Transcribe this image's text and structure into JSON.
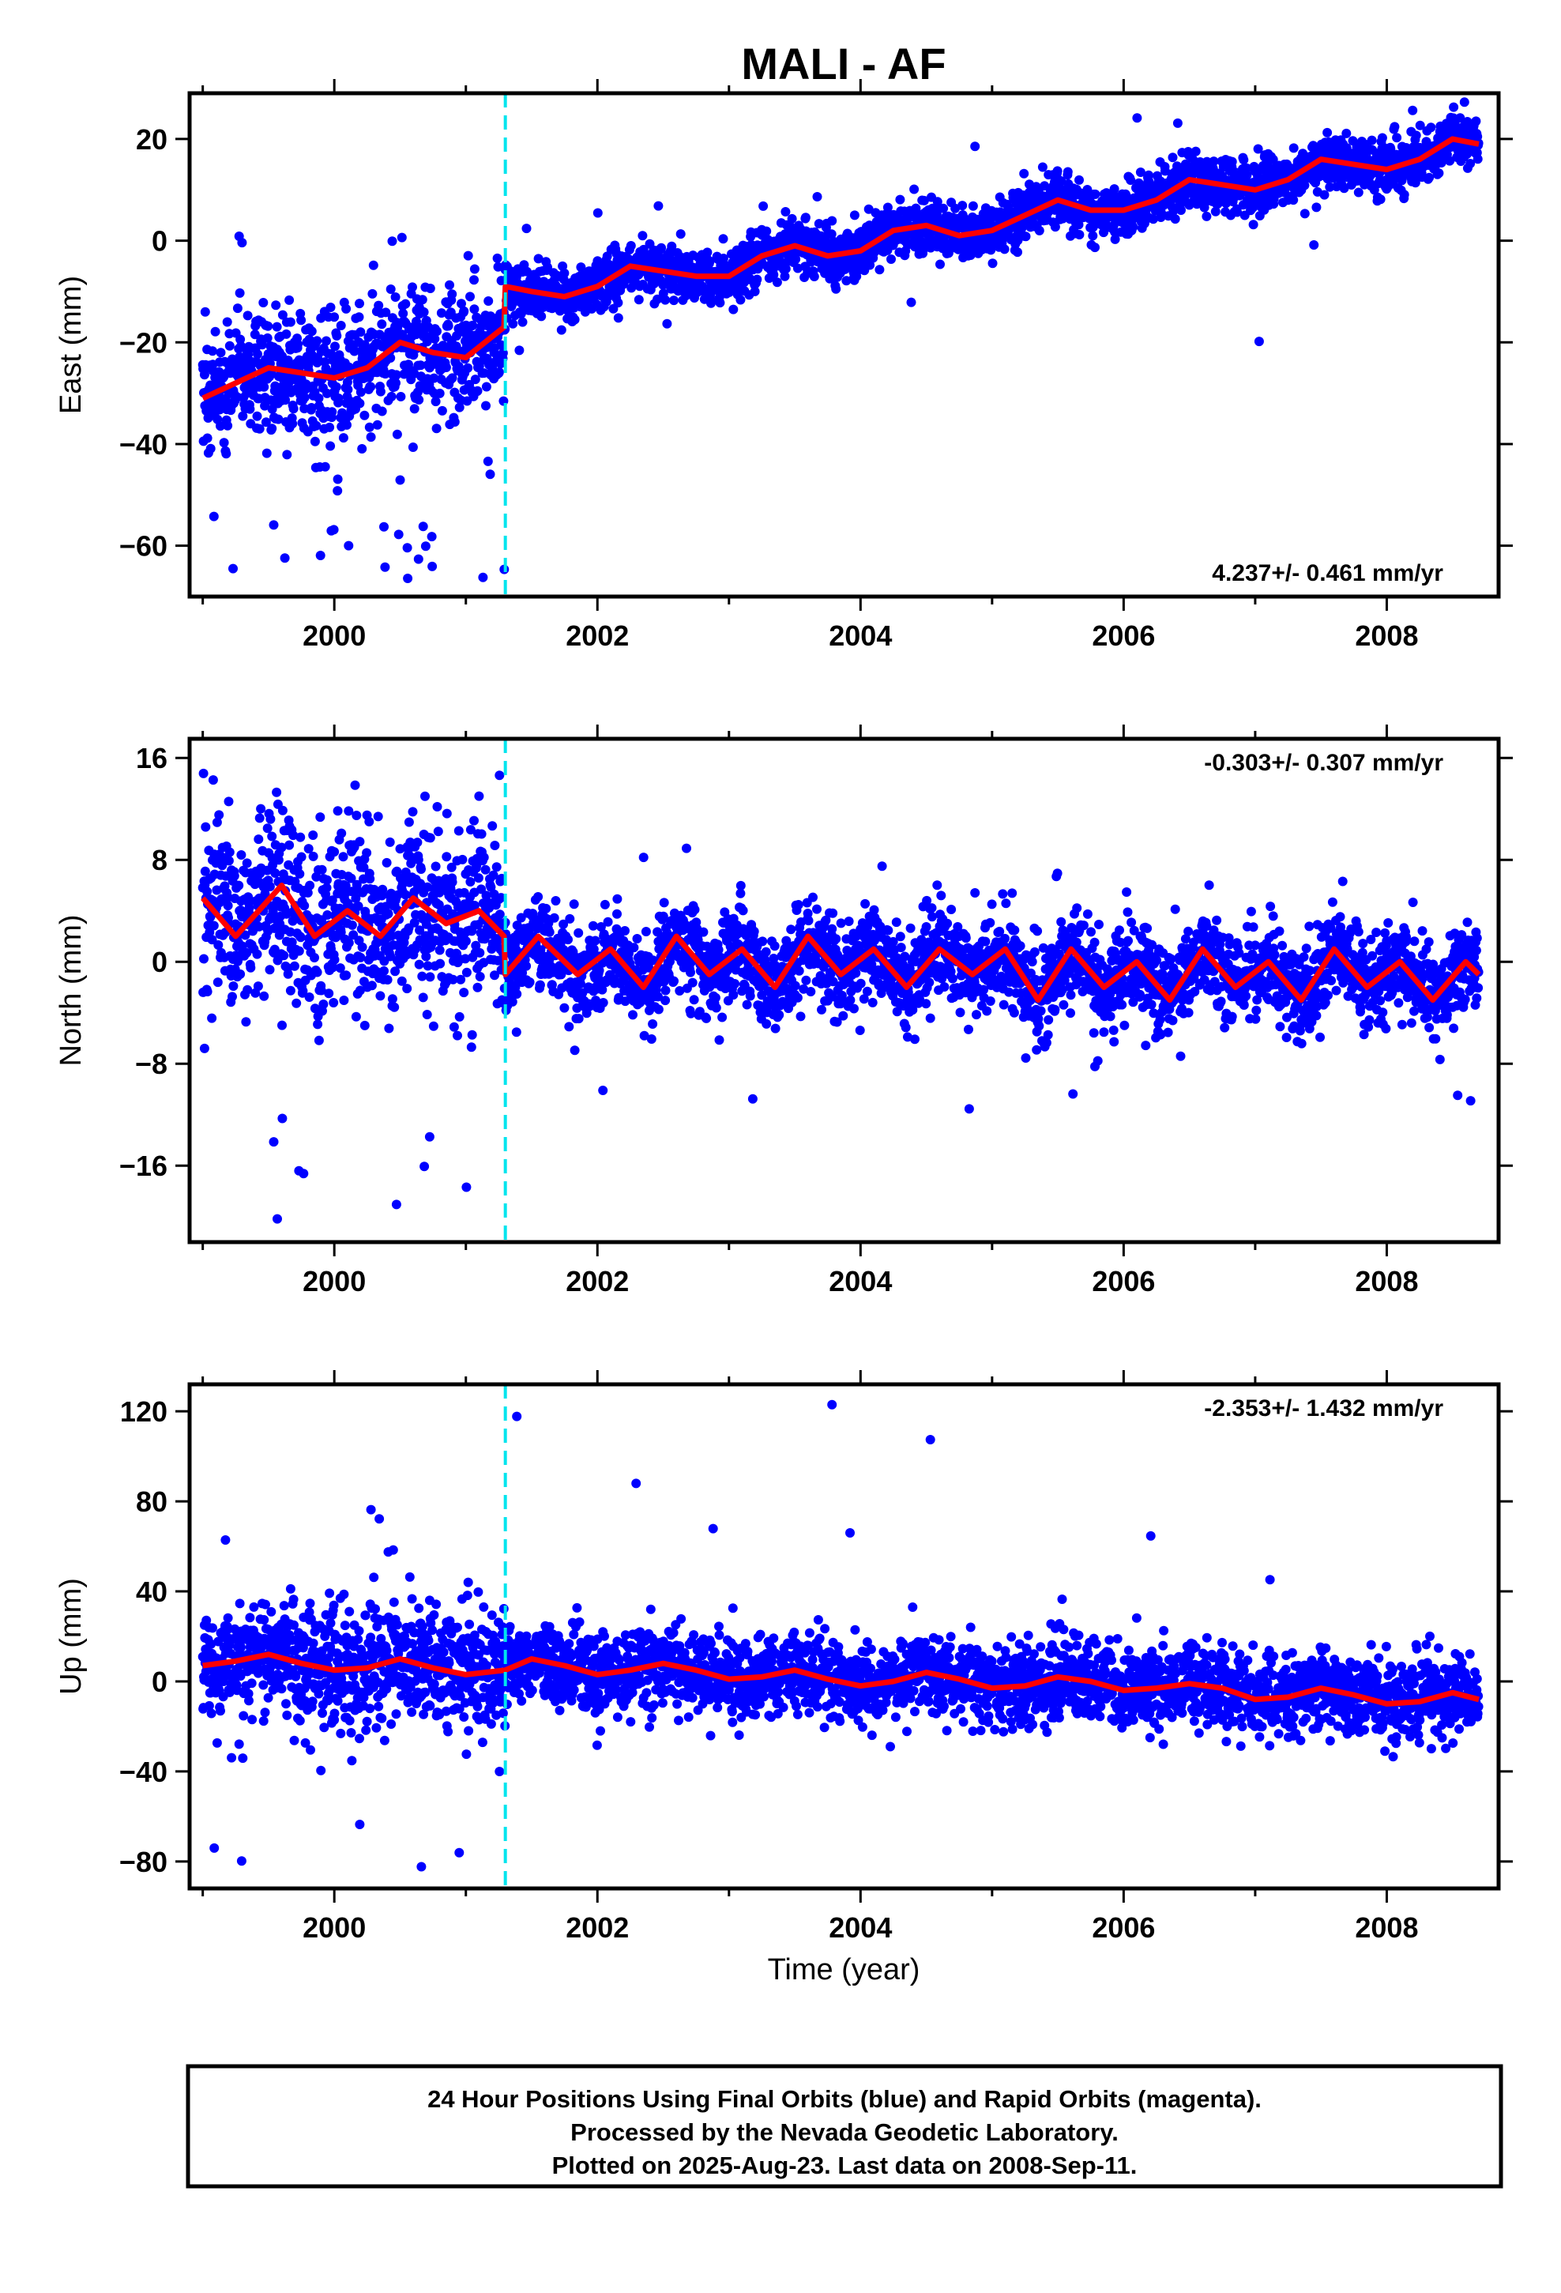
{
  "chart_data": {
    "type": "scatter",
    "title": "MALI - AF",
    "xlabel": "Time (year)",
    "xlim": [
      1998.9,
      2008.85
    ],
    "x_ticks": [
      "2000",
      "2002",
      "2004",
      "2006",
      "2008"
    ],
    "x_tick_values": [
      2000,
      2002,
      2004,
      2006,
      2008
    ],
    "step_epoch": 2001.3,
    "colors": {
      "points": "#0000ff",
      "model": "#ff0000",
      "step_line": "#00e5ee",
      "frame": "#000000"
    },
    "panels": [
      {
        "id": "east",
        "ylabel": "East (mm)",
        "ylim": [
          -70,
          29
        ],
        "y_ticks": [
          "20",
          "0",
          "−20",
          "−40",
          "−60"
        ],
        "y_tick_values": [
          20,
          0,
          -20,
          -40,
          -60
        ],
        "rate_text": "4.237+/- 0.461 mm/yr",
        "rate_position": "bottom-right",
        "model": {
          "x": [
            1999.0,
            1999.25,
            1999.5,
            1999.75,
            2000.0,
            2000.25,
            2000.5,
            2000.75,
            2001.0,
            2001.29,
            2001.3,
            2001.5,
            2001.75,
            2002.0,
            2002.25,
            2002.5,
            2002.75,
            2003.0,
            2003.25,
            2003.5,
            2003.75,
            2004.0,
            2004.25,
            2004.5,
            2004.75,
            2005.0,
            2005.25,
            2005.5,
            2005.75,
            2006.0,
            2006.25,
            2006.5,
            2006.75,
            2007.0,
            2007.25,
            2007.5,
            2007.75,
            2008.0,
            2008.25,
            2008.5,
            2008.7
          ],
          "y": [
            -31,
            -28,
            -25,
            -26,
            -27,
            -25,
            -20,
            -22,
            -23,
            -17,
            -9,
            -10,
            -11,
            -9,
            -5,
            -6,
            -7,
            -7,
            -3,
            -1,
            -3,
            -2,
            2,
            3,
            1,
            2,
            5,
            8,
            6,
            6,
            8,
            12,
            11,
            10,
            12,
            16,
            15,
            14,
            16,
            20,
            19
          ]
        },
        "points": {
          "start": 1999.0,
          "end": 2008.7,
          "segments": [
            {
              "from": 1999.0,
              "to": 2001.3,
              "scatter": 6.0,
              "outlier_fraction": 0.08,
              "outlier_min": -68,
              "outlier_max": 1
            },
            {
              "from": 2001.3,
              "to": 2008.7,
              "scatter": 2.6,
              "outlier_fraction": 0.005,
              "outlier_min": -23,
              "outlier_max": 27
            }
          ]
        }
      },
      {
        "id": "north",
        "ylabel": "North (mm)",
        "ylim": [
          -22,
          17.5
        ],
        "y_ticks": [
          "16",
          "8",
          "0",
          "−8",
          "−16"
        ],
        "y_tick_values": [
          16,
          8,
          0,
          -8,
          -16
        ],
        "rate_text": "-0.303+/- 0.307 mm/yr",
        "rate_position": "top-right",
        "model": {
          "x": [
            1999.0,
            1999.25,
            1999.6,
            1999.85,
            2000.1,
            2000.35,
            2000.6,
            2000.85,
            2001.1,
            2001.29,
            2001.3,
            2001.55,
            2001.85,
            2002.1,
            2002.35,
            2002.6,
            2002.85,
            2003.1,
            2003.35,
            2003.6,
            2003.85,
            2004.1,
            2004.35,
            2004.6,
            2004.85,
            2005.1,
            2005.35,
            2005.6,
            2005.85,
            2006.1,
            2006.35,
            2006.6,
            2006.85,
            2007.1,
            2007.35,
            2007.6,
            2007.85,
            2008.1,
            2008.35,
            2008.6,
            2008.7
          ],
          "y": [
            5,
            2,
            6,
            2,
            4,
            2,
            5,
            3,
            4,
            2,
            -1,
            2,
            -1,
            1,
            -2,
            2,
            -1,
            1,
            -2,
            2,
            -1,
            1,
            -2,
            1,
            -1,
            1,
            -3,
            1,
            -2,
            0,
            -3,
            1,
            -2,
            0,
            -3,
            1,
            -2,
            0,
            -3,
            0,
            -1
          ]
        },
        "points": {
          "start": 1999.0,
          "end": 2008.7,
          "segments": [
            {
              "from": 1999.0,
              "to": 2001.3,
              "scatter": 3.5,
              "outlier_fraction": 0.04,
              "outlier_min": -21,
              "outlier_max": 17
            },
            {
              "from": 2001.3,
              "to": 2008.7,
              "scatter": 1.8,
              "outlier_fraction": 0.01,
              "outlier_min": -12,
              "outlier_max": 10
            }
          ]
        }
      },
      {
        "id": "up",
        "ylabel": "Up (mm)",
        "ylim": [
          -92,
          132
        ],
        "y_ticks": [
          "120",
          "80",
          "40",
          "0",
          "−40",
          "−80"
        ],
        "y_tick_values": [
          120,
          80,
          40,
          0,
          -40,
          -80
        ],
        "rate_text": "-2.353+/- 1.432 mm/yr",
        "rate_position": "top-right",
        "model": {
          "x": [
            1999.0,
            1999.25,
            1999.5,
            1999.75,
            2000.0,
            2000.25,
            2000.5,
            2000.75,
            2001.0,
            2001.3,
            2001.5,
            2001.75,
            2002.0,
            2002.25,
            2002.5,
            2002.75,
            2003.0,
            2003.25,
            2003.5,
            2003.75,
            2004.0,
            2004.25,
            2004.5,
            2004.75,
            2005.0,
            2005.25,
            2005.5,
            2005.75,
            2006.0,
            2006.25,
            2006.5,
            2006.75,
            2007.0,
            2007.25,
            2007.5,
            2007.75,
            2008.0,
            2008.25,
            2008.5,
            2008.7
          ],
          "y": [
            7,
            9,
            12,
            8,
            5,
            6,
            10,
            6,
            3,
            5,
            10,
            7,
            3,
            5,
            8,
            5,
            1,
            2,
            5,
            1,
            -2,
            0,
            4,
            1,
            -3,
            -2,
            2,
            0,
            -4,
            -3,
            -1,
            -3,
            -8,
            -7,
            -3,
            -6,
            -10,
            -9,
            -5,
            -8
          ]
        },
        "points": {
          "start": 1999.0,
          "end": 2008.7,
          "segments": [
            {
              "from": 1999.0,
              "to": 2001.3,
              "scatter": 13.0,
              "outlier_fraction": 0.04,
              "outlier_min": -86,
              "outlier_max": 79
            },
            {
              "from": 2001.3,
              "to": 2008.7,
              "scatter": 9.0,
              "outlier_fraction": 0.005,
              "outlier_min": -45,
              "outlier_max": 128
            }
          ]
        }
      }
    ]
  },
  "footer": {
    "line1": "24 Hour Positions Using Final Orbits (blue) and Rapid Orbits (magenta).",
    "line2": "Processed by the Nevada Geodetic Laboratory.",
    "line3": "Plotted on 2025-Aug-23. Last data on 2008-Sep-11."
  }
}
